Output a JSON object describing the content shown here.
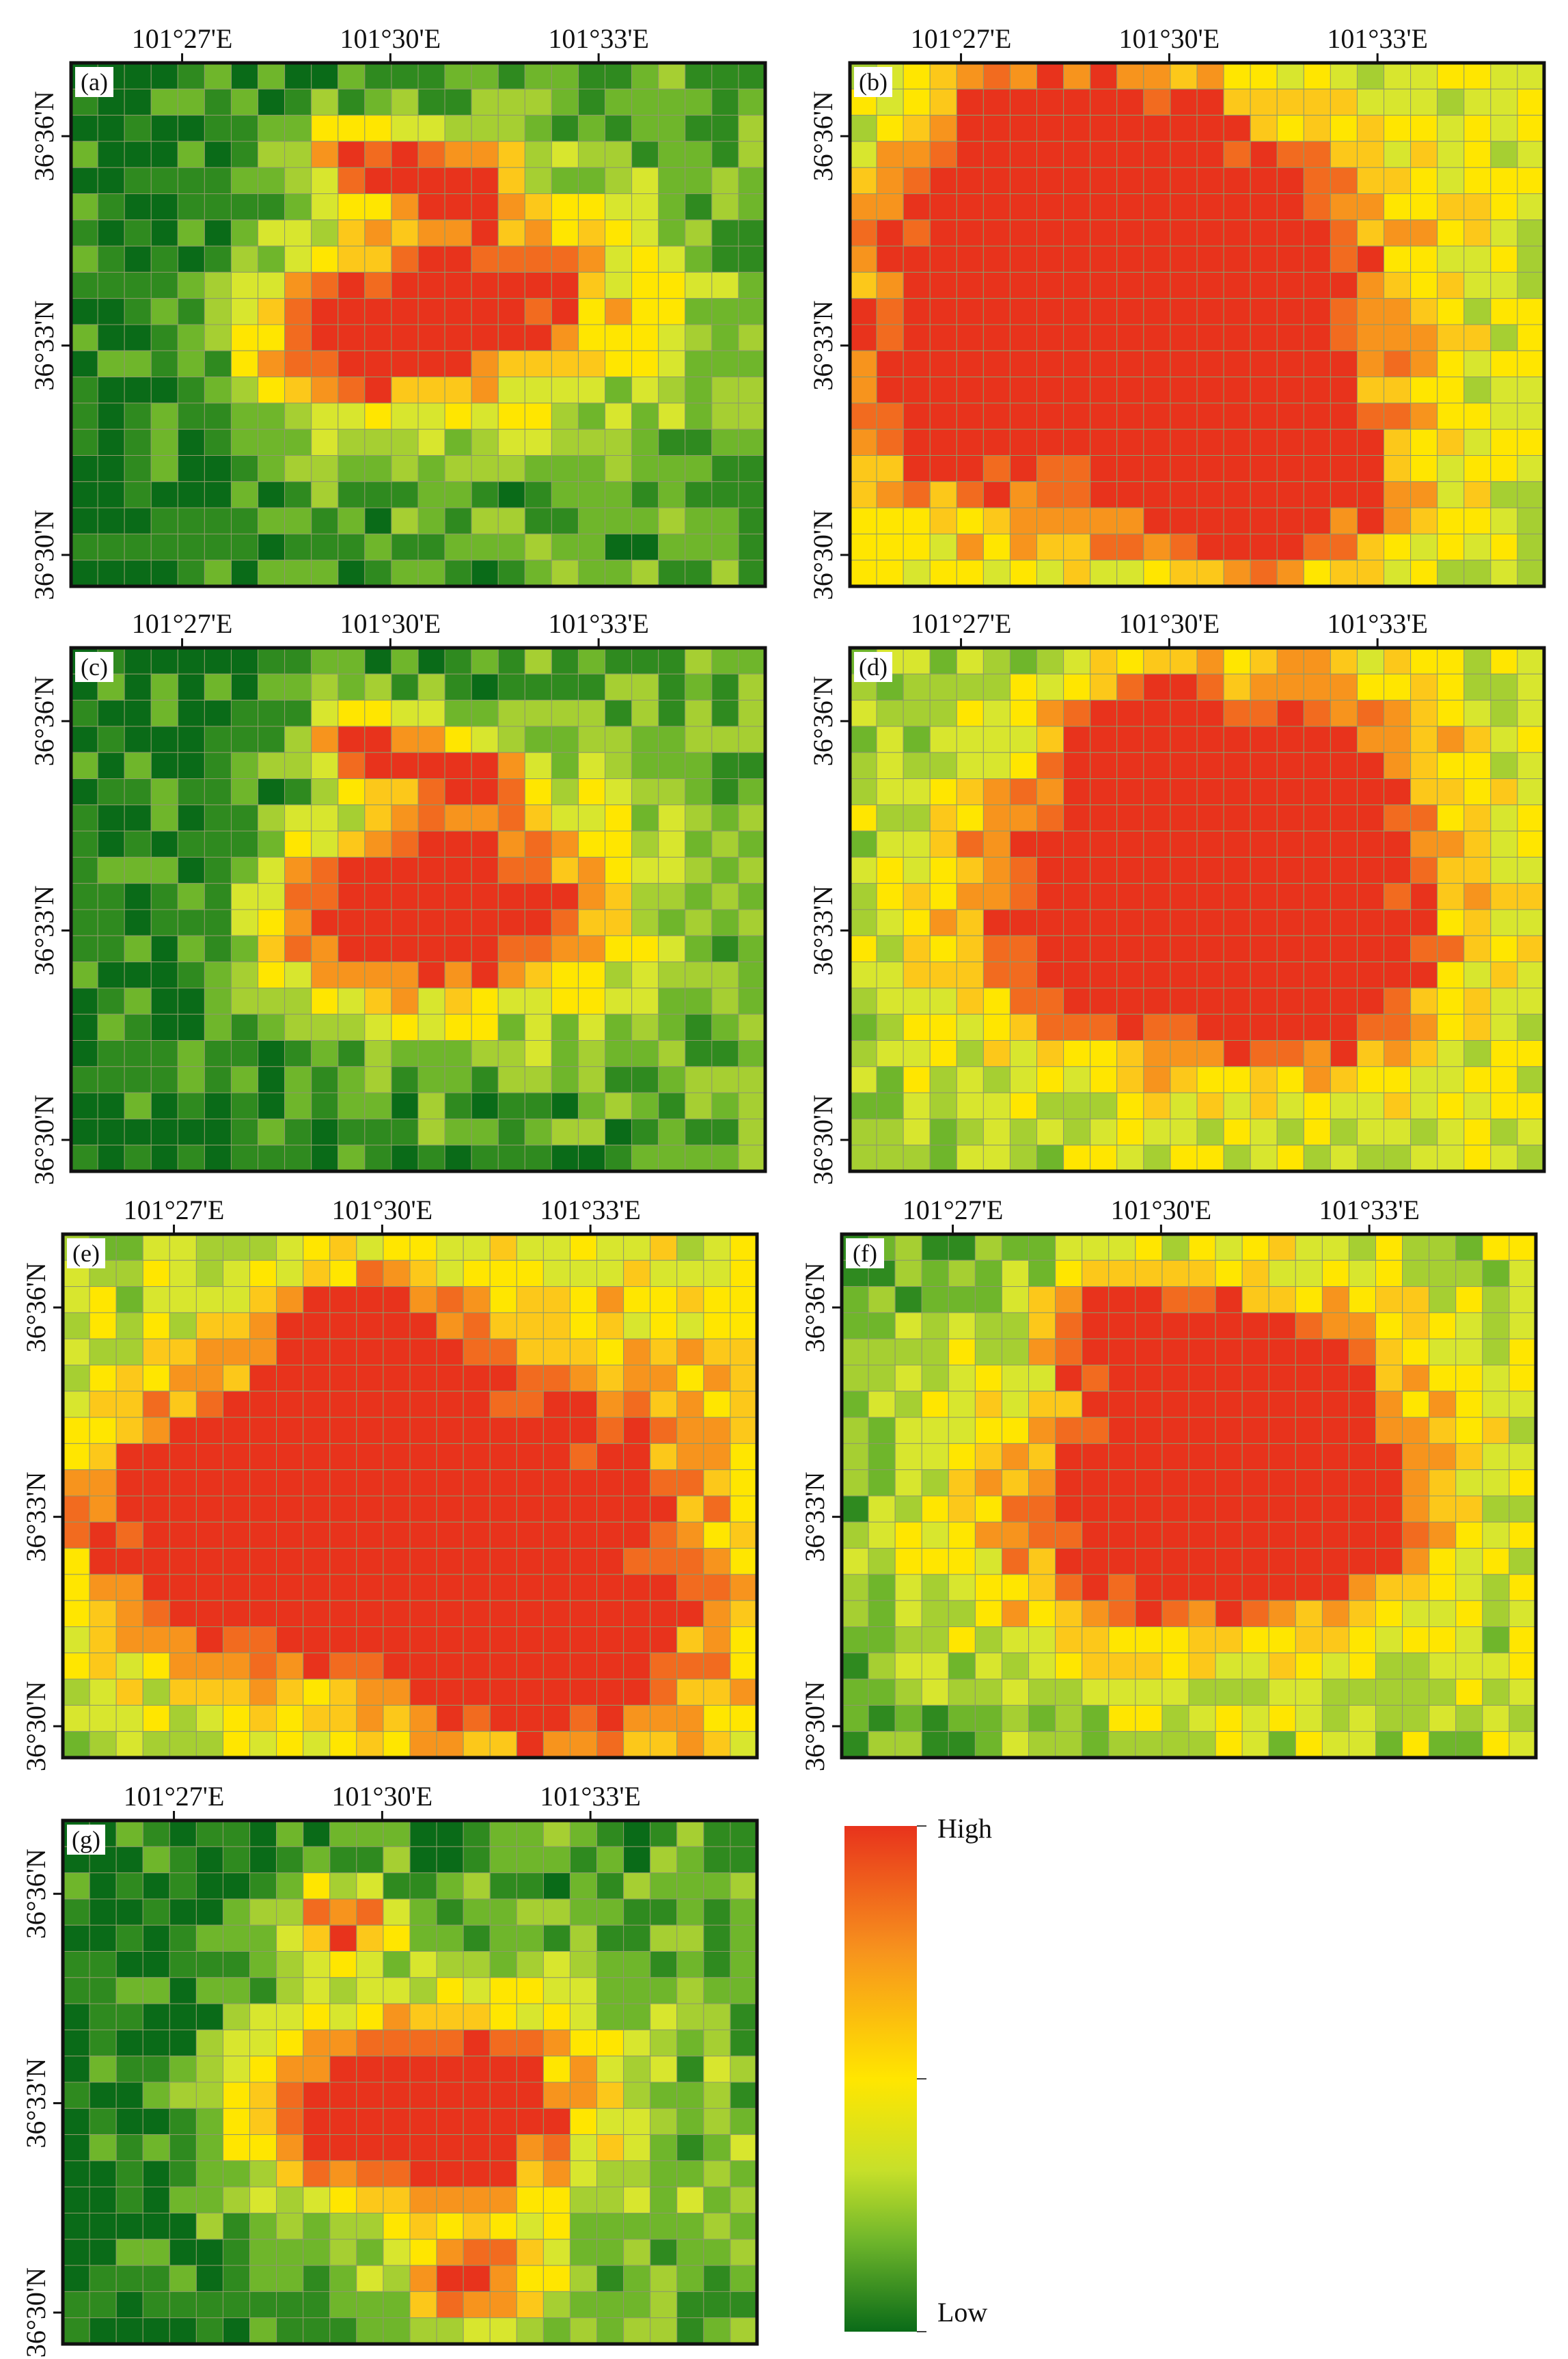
{
  "panels": [
    {
      "label": "(a)",
      "seed": 11,
      "hot": [
        [
          0.62,
          0.45,
          0.26
        ],
        [
          0.4,
          0.52,
          0.2
        ],
        [
          0.56,
          0.22,
          0.1
        ],
        [
          0.42,
          0.18,
          0.1
        ]
      ],
      "bg": 0.1
    },
    {
      "label": "(b)",
      "seed": 23,
      "hot": [
        [
          0.52,
          0.4,
          0.36
        ],
        [
          0.3,
          0.2,
          0.3
        ],
        [
          0.18,
          0.62,
          0.4
        ],
        [
          0.6,
          0.8,
          0.25
        ]
      ],
      "bg": 0.28
    },
    {
      "label": "(c)",
      "seed": 37,
      "hot": [
        [
          0.62,
          0.48,
          0.26
        ],
        [
          0.42,
          0.52,
          0.2
        ],
        [
          0.56,
          0.24,
          0.1
        ],
        [
          0.42,
          0.18,
          0.1
        ]
      ],
      "bg": 0.1
    },
    {
      "label": "(d)",
      "seed": 41,
      "hot": [
        [
          0.4,
          0.5,
          0.36
        ],
        [
          0.6,
          0.3,
          0.3
        ],
        [
          0.42,
          0.18,
          0.12
        ],
        [
          0.66,
          0.62,
          0.22
        ]
      ],
      "bg": 0.3
    },
    {
      "label": "(e)",
      "seed": 53,
      "hot": [
        [
          0.55,
          0.52,
          0.42
        ],
        [
          0.42,
          0.2,
          0.14
        ],
        [
          0.7,
          0.8,
          0.22
        ],
        [
          0.25,
          0.55,
          0.3
        ]
      ],
      "bg": 0.36
    },
    {
      "label": "(f)",
      "seed": 67,
      "hot": [
        [
          0.44,
          0.54,
          0.34
        ],
        [
          0.6,
          0.3,
          0.26
        ],
        [
          0.4,
          0.16,
          0.12
        ],
        [
          0.68,
          0.55,
          0.2
        ]
      ],
      "bg": 0.26
    },
    {
      "label": "(g)",
      "seed": 79,
      "hot": [
        [
          0.6,
          0.55,
          0.26
        ],
        [
          0.42,
          0.55,
          0.22
        ],
        [
          0.4,
          0.2,
          0.1
        ],
        [
          0.6,
          0.88,
          0.12
        ]
      ],
      "bg": 0.1
    }
  ],
  "axes": {
    "x_ticks": [
      "101°27'E",
      "101°30'E",
      "101°33'E"
    ],
    "y_ticks": [
      "36°36'N",
      "36°33'N",
      "36°30'N"
    ]
  },
  "legend": {
    "high_label": "High",
    "low_label": "Low",
    "colors": [
      "#e8331c",
      "#f7941d",
      "#ffe600",
      "#c7e02a",
      "#6fb62b",
      "#0a6b18"
    ]
  },
  "grid": {
    "cols": 26,
    "rows": 20
  }
}
